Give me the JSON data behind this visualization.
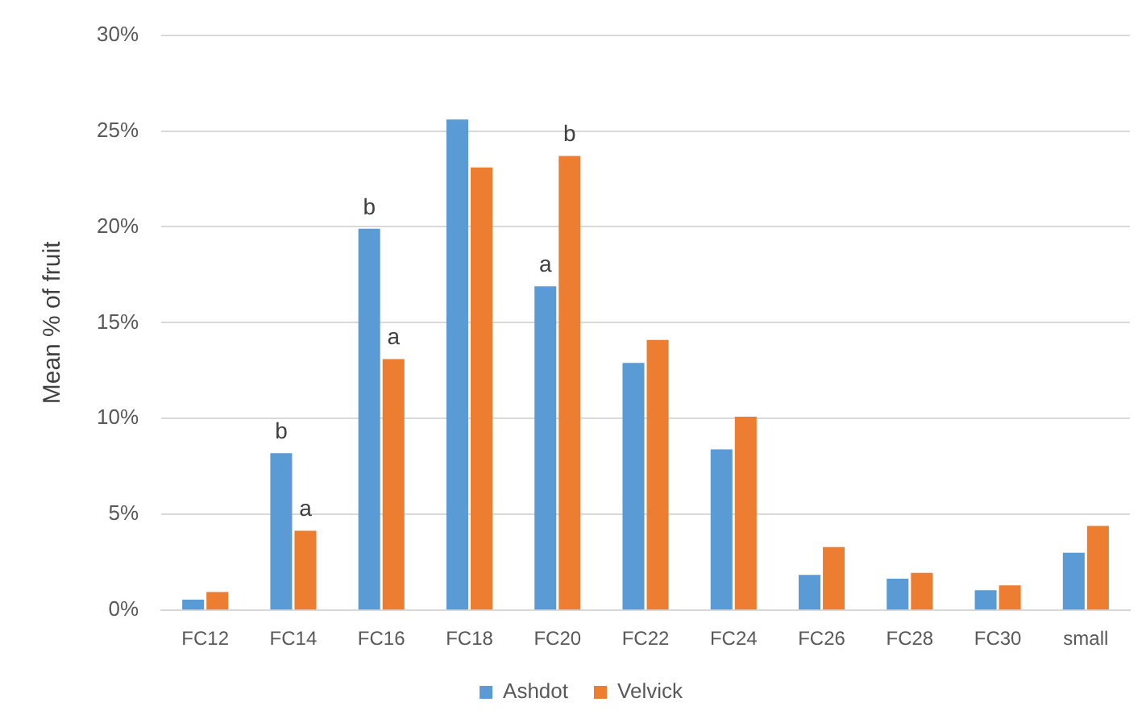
{
  "chart_data": {
    "type": "bar",
    "ylabel": "Mean % of fruit",
    "categories": [
      "FC12",
      "FC14",
      "FC16",
      "FC18",
      "FC20",
      "FC22",
      "FC24",
      "FC26",
      "FC28",
      "FC30",
      "small"
    ],
    "series": [
      {
        "name": "Ashdot",
        "color": "#5b9bd5",
        "values": [
          0.55,
          8.2,
          19.9,
          25.6,
          16.9,
          12.9,
          8.4,
          1.85,
          1.65,
          1.05,
          3.0
        ]
      },
      {
        "name": "Velvick",
        "color": "#ed7d31",
        "values": [
          0.95,
          4.15,
          13.1,
          23.1,
          23.7,
          14.1,
          10.1,
          3.3,
          1.95,
          1.3,
          4.4
        ]
      }
    ],
    "ylim": [
      0,
      30
    ],
    "yticks": [
      {
        "value": 0,
        "label": "0%"
      },
      {
        "value": 5,
        "label": "5%"
      },
      {
        "value": 10,
        "label": "10%"
      },
      {
        "value": 15,
        "label": "15%"
      },
      {
        "value": 20,
        "label": "20%"
      },
      {
        "value": 25,
        "label": "25%"
      },
      {
        "value": 30,
        "label": "30%"
      }
    ],
    "grid": "y",
    "legend": "bottom",
    "annotations": [
      {
        "text": "b",
        "x": "FC14",
        "y": 8.2
      },
      {
        "text": "a",
        "x": "FC14",
        "y": 4.15
      },
      {
        "text": "b",
        "x": "FC16",
        "y": 19.9
      },
      {
        "text": "a",
        "x": "FC16",
        "y": 13.1
      },
      {
        "text": "a",
        "x": "FC20",
        "y": 16.9
      },
      {
        "text": "b",
        "x": "FC20",
        "y": 23.7
      }
    ]
  }
}
